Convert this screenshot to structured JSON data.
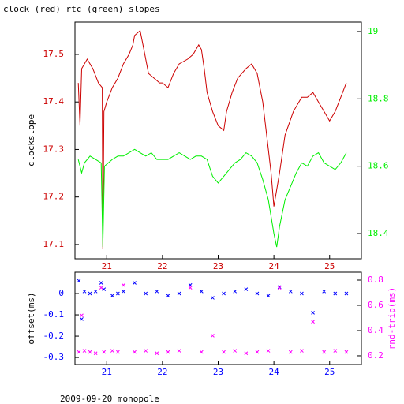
{
  "footer": "2009-09-20 monopole",
  "chart_data": [
    {
      "type": "line",
      "title": "clock (red) rtc (green) slopes",
      "y_label": "clockslope",
      "xlim": [
        20.43,
        25.57
      ],
      "xticks": [
        21,
        22,
        23,
        24,
        25
      ],
      "ylim": [
        17.07,
        17.568
      ],
      "yticks": [
        17.1,
        17.2,
        17.3,
        17.4,
        17.5
      ],
      "y2lim": [
        18.325,
        19.028
      ],
      "y2ticks": [
        18.4,
        18.6,
        18.8,
        19
      ],
      "series": [
        {
          "name": "clock",
          "color": "#cc0000",
          "x": [
            20.49,
            20.52,
            20.55,
            20.65,
            20.75,
            20.85,
            20.92,
            20.93,
            20.95,
            21.0,
            21.1,
            21.2,
            21.3,
            21.4,
            21.47,
            21.5,
            21.6,
            21.65,
            21.75,
            21.85,
            21.95,
            22.0,
            22.1,
            22.2,
            22.3,
            22.45,
            22.55,
            22.65,
            22.7,
            22.75,
            22.8,
            22.9,
            23.0,
            23.1,
            23.15,
            23.25,
            23.35,
            23.5,
            23.6,
            23.7,
            23.8,
            23.9,
            23.95,
            24.0,
            24.1,
            24.2,
            24.35,
            24.5,
            24.6,
            24.7,
            24.8,
            24.9,
            25.0,
            25.1,
            25.2,
            25.3
          ],
          "values": [
            17.44,
            17.35,
            17.47,
            17.49,
            17.47,
            17.44,
            17.43,
            17.09,
            17.38,
            17.4,
            17.43,
            17.45,
            17.48,
            17.5,
            17.52,
            17.54,
            17.55,
            17.52,
            17.46,
            17.45,
            17.44,
            17.44,
            17.43,
            17.46,
            17.48,
            17.49,
            17.5,
            17.52,
            17.51,
            17.47,
            17.42,
            17.38,
            17.35,
            17.34,
            17.38,
            17.42,
            17.45,
            17.47,
            17.48,
            17.46,
            17.4,
            17.3,
            17.25,
            17.18,
            17.25,
            17.33,
            17.38,
            17.41,
            17.41,
            17.42,
            17.4,
            17.38,
            17.36,
            17.38,
            17.41,
            17.44
          ]
        },
        {
          "name": "rtc",
          "color": "#00ee00",
          "axis": "y2",
          "x": [
            20.49,
            20.55,
            20.6,
            20.7,
            20.8,
            20.9,
            20.93,
            20.96,
            21.1,
            21.2,
            21.3,
            21.4,
            21.5,
            21.6,
            21.7,
            21.8,
            21.9,
            22.0,
            22.1,
            22.2,
            22.3,
            22.4,
            22.5,
            22.6,
            22.7,
            22.8,
            22.9,
            23.0,
            23.1,
            23.2,
            23.3,
            23.4,
            23.5,
            23.6,
            23.7,
            23.8,
            23.9,
            24.0,
            24.05,
            24.1,
            24.2,
            24.3,
            24.4,
            24.5,
            24.6,
            24.7,
            24.8,
            24.9,
            25.0,
            25.1,
            25.2,
            25.3
          ],
          "values": [
            18.62,
            18.58,
            18.61,
            18.63,
            18.62,
            18.61,
            18.36,
            18.6,
            18.62,
            18.63,
            18.63,
            18.64,
            18.65,
            18.64,
            18.63,
            18.64,
            18.62,
            18.62,
            18.62,
            18.63,
            18.64,
            18.63,
            18.62,
            18.63,
            18.63,
            18.62,
            18.57,
            18.55,
            18.57,
            18.59,
            18.61,
            18.62,
            18.64,
            18.63,
            18.61,
            18.56,
            18.5,
            18.4,
            18.36,
            18.42,
            18.5,
            18.54,
            18.58,
            18.61,
            18.6,
            18.63,
            18.64,
            18.61,
            18.6,
            18.59,
            18.61,
            18.64
          ]
        }
      ]
    },
    {
      "type": "scatter",
      "y_label": "offset(ms)",
      "y2_label": "rnd-trip(ms)",
      "xlim": [
        20.43,
        25.57
      ],
      "xticks": [
        21,
        22,
        23,
        24,
        25
      ],
      "ylim": [
        -0.333,
        0.1
      ],
      "yticks": [
        0,
        -0.1,
        -0.2,
        -0.3
      ],
      "y2lim": [
        0.131,
        0.8625
      ],
      "y2ticks": [
        0.2,
        0.4,
        0.6,
        0.8
      ],
      "x": [
        20.5,
        20.55,
        20.6,
        20.7,
        20.8,
        20.9,
        20.95,
        21.1,
        21.2,
        21.3,
        21.5,
        21.7,
        21.9,
        22.1,
        22.3,
        22.5,
        22.7,
        22.9,
        23.1,
        23.3,
        23.5,
        23.7,
        23.9,
        24.1,
        24.3,
        24.5,
        24.7,
        24.9,
        25.1,
        25.3
      ],
      "series": [
        {
          "name": "offset",
          "color": "#0000ff",
          "values": [
            0.06,
            -0.12,
            0.01,
            0,
            0.01,
            0.05,
            0.02,
            -0.01,
            0,
            0.01,
            0.05,
            0,
            0.01,
            -0.01,
            0,
            0.04,
            0.01,
            -0.02,
            0,
            0.01,
            0.02,
            0,
            -0.01,
            0.03,
            0.01,
            0,
            -0.09,
            0.01,
            0,
            0
          ]
        },
        {
          "name": "rnd-trip",
          "color": "#ff00ff",
          "axis": "y2",
          "values": [
            0.23,
            0.52,
            0.24,
            0.23,
            0.22,
            0.74,
            0.23,
            0.24,
            0.23,
            0.76,
            0.23,
            0.24,
            0.22,
            0.23,
            0.24,
            0.74,
            0.23,
            0.36,
            0.23,
            0.24,
            0.22,
            0.23,
            0.24,
            0.74,
            0.23,
            0.24,
            0.47,
            0.23,
            0.24,
            0.23
          ]
        }
      ]
    }
  ]
}
